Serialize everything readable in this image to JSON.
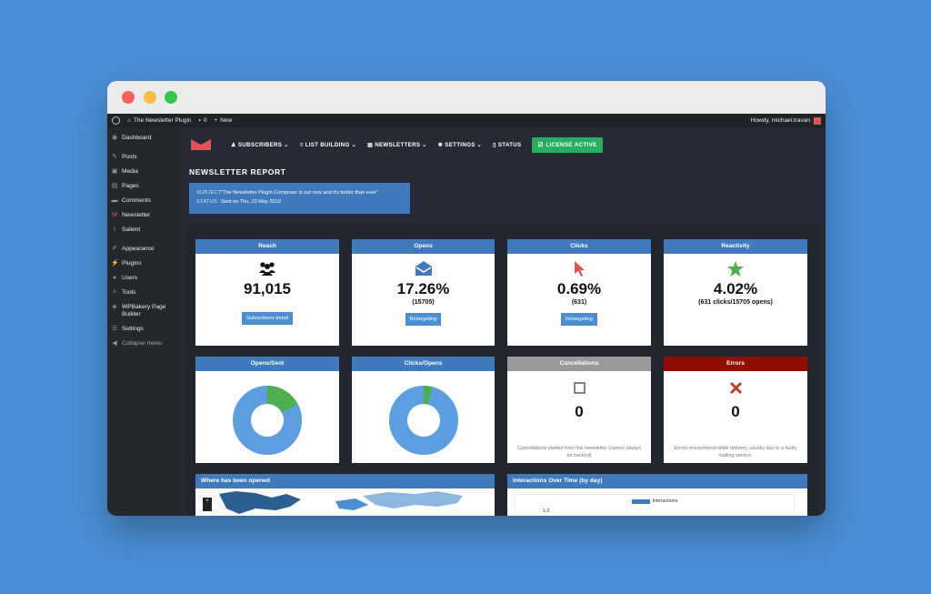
{
  "admin_bar": {
    "site_name": "The Newsletter Plugin",
    "comments_count": "0",
    "new_label": "New",
    "greeting": "Howdy, michael.travan"
  },
  "sidebar": {
    "items": [
      {
        "label": "Dashboard",
        "icon": "dashboard-icon"
      },
      {
        "label": "Posts",
        "icon": "pin-icon"
      },
      {
        "label": "Media",
        "icon": "media-icon"
      },
      {
        "label": "Pages",
        "icon": "pages-icon"
      },
      {
        "label": "Comments",
        "icon": "comment-icon"
      },
      {
        "label": "Newsletter",
        "icon": "newsletter-icon"
      },
      {
        "label": "Salient",
        "icon": "salient-icon"
      },
      {
        "label": "Appearance",
        "icon": "brush-icon"
      },
      {
        "label": "Plugins",
        "icon": "plugin-icon"
      },
      {
        "label": "Users",
        "icon": "user-icon"
      },
      {
        "label": "Tools",
        "icon": "wrench-icon"
      },
      {
        "label": "WPBakery Page Builder",
        "icon": "builder-icon"
      },
      {
        "label": "Settings",
        "icon": "settings-icon"
      },
      {
        "label": "Collapse menu",
        "icon": "collapse-icon"
      }
    ]
  },
  "nav": {
    "subscribers": "SUBSCRIBERS",
    "list_building": "LIST BUILDING",
    "newsletters": "NEWSLETTERS",
    "settings": "SETTINGS",
    "status": "STATUS",
    "license": "LICENSE ACTIVE"
  },
  "report": {
    "title": "NEWSLETTER REPORT",
    "subject_key": "SUBJECT",
    "subject_value": "\"The Newsletter Plugin Composer is out now and it's better than ever\"",
    "status_key": "STATUS",
    "status_value": "Sent on Thu, 23 May 2019"
  },
  "cards": {
    "reach": {
      "title": "Reach",
      "value": "91,015",
      "button": "Subscribers detail"
    },
    "opens": {
      "title": "Opens",
      "value": "17.26%",
      "sub": "(15705)",
      "button": "Retargeting"
    },
    "clicks": {
      "title": "Clicks",
      "value": "0.69%",
      "sub": "(631)",
      "button": "Retargeting"
    },
    "reactivity": {
      "title": "Reactivity",
      "value": "4.02%",
      "sub": "(631 clicks/15705 opens)"
    },
    "opens_sent": {
      "title": "Opens/Sent",
      "opened_fraction": 0.1726
    },
    "clicks_opens": {
      "title": "Clicks/Opens",
      "clicked_fraction": 0.0402
    },
    "cancellations": {
      "title": "Cancellations",
      "value": "0",
      "note": "Cancellations started from this newsletter (cannot always be tracked)"
    },
    "errors": {
      "title": "Errors",
      "value": "0",
      "note": "Errors encountered while delivery, usually due to a faulty mailing service."
    },
    "map": {
      "title": "Where has been opened",
      "zoom_label": "+"
    },
    "interactions": {
      "title": "Interactions Over Time (by day)",
      "legend": "Interactions",
      "y_tick": "1.0"
    }
  },
  "colors": {
    "accent": "#4079bc",
    "donut_main": "#5d9ee0",
    "donut_part": "#4caf50",
    "license": "#27ae60",
    "error_header": "#8e0e00",
    "gray_header": "#999999"
  }
}
